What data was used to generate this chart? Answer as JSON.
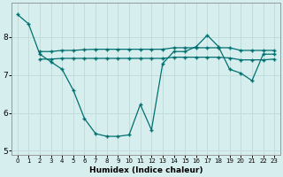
{
  "background_color": "#d7eeee",
  "grid_color": "#c2dcdc",
  "line_color": "#007070",
  "xlabel": "Humidex (Indice chaleur)",
  "xlim": [
    -0.5,
    23.5
  ],
  "ylim": [
    4.9,
    8.9
  ],
  "yticks": [
    5,
    6,
    7,
    8
  ],
  "xticks": [
    0,
    1,
    2,
    3,
    4,
    5,
    6,
    7,
    8,
    9,
    10,
    11,
    12,
    13,
    14,
    15,
    16,
    17,
    18,
    19,
    20,
    21,
    22,
    23
  ],
  "series": [
    {
      "x": [
        0,
        1,
        2,
        3,
        4,
        5,
        6,
        7,
        8,
        9,
        10,
        11,
        12,
        13,
        14,
        15,
        16,
        17,
        18,
        19,
        20,
        21,
        22,
        23
      ],
      "y": [
        8.6,
        8.35,
        7.55,
        7.35,
        7.15,
        6.6,
        5.85,
        5.45,
        5.38,
        5.38,
        5.42,
        6.22,
        5.55,
        7.3,
        7.62,
        7.62,
        7.75,
        8.05,
        7.75,
        7.15,
        7.05,
        6.85,
        7.55,
        7.55
      ]
    },
    {
      "x": [
        2,
        3,
        4,
        5,
        6,
        7,
        8,
        9,
        10,
        11,
        12,
        13,
        14,
        15,
        16,
        17,
        18,
        19,
        20,
        21,
        22,
        23
      ],
      "y": [
        7.62,
        7.62,
        7.65,
        7.65,
        7.67,
        7.68,
        7.68,
        7.68,
        7.68,
        7.68,
        7.68,
        7.68,
        7.72,
        7.72,
        7.72,
        7.72,
        7.72,
        7.72,
        7.65,
        7.65,
        7.65,
        7.65
      ]
    },
    {
      "x": [
        2,
        3,
        4,
        5,
        6,
        7,
        8,
        9,
        10,
        11,
        12,
        13,
        14,
        15,
        16,
        17,
        18,
        19,
        20,
        21,
        22,
        23
      ],
      "y": [
        7.42,
        7.42,
        7.44,
        7.44,
        7.44,
        7.44,
        7.44,
        7.44,
        7.44,
        7.44,
        7.44,
        7.44,
        7.47,
        7.47,
        7.47,
        7.47,
        7.47,
        7.45,
        7.4,
        7.4,
        7.4,
        7.42
      ]
    }
  ]
}
